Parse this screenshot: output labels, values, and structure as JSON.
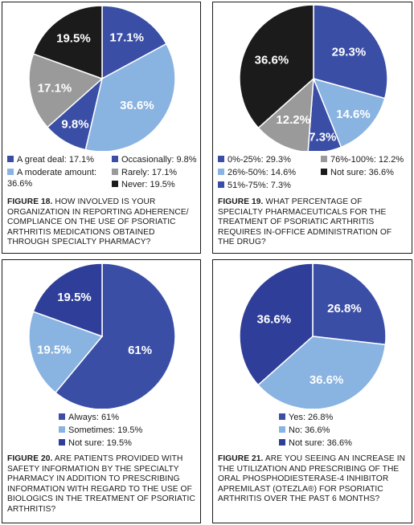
{
  "colors": {
    "dark_blue": "#3a4ea6",
    "light_blue": "#89b3e0",
    "gray": "#9a9a9a",
    "black": "#1b1b1b"
  },
  "chart_data": [
    {
      "type": "pie",
      "title": "",
      "figure_label": "FIGURE 18.",
      "caption": "HOW INVOLVED IS YOUR ORGANIZATION IN REPORTING ADHERENCE/ COMPLIANCE ON THE USE OF PSORIATIC ARTHRITIS MEDICATIONS OBTAINED THROUGH SPECIALTY PHARMACY?",
      "slices": [
        {
          "name": "A great deal",
          "value": 17.1,
          "label": "17.1%",
          "legend": "A great deal: 17.1%",
          "color": "#3a4ea6"
        },
        {
          "name": "A moderate amount",
          "value": 36.6,
          "label": "36.6%",
          "legend": "A moderate amount: 36.6%",
          "color": "#89b3e0"
        },
        {
          "name": "Occasionally",
          "value": 9.8,
          "label": "9.8%",
          "legend": "Occasionally: 9.8%",
          "color": "#3a4ea6"
        },
        {
          "name": "Rarely",
          "value": 17.1,
          "label": "17.1%",
          "legend": "Rarely: 17.1%",
          "color": "#9a9a9a"
        },
        {
          "name": "Never",
          "value": 19.5,
          "label": "19.5%",
          "legend": "Never: 19.5%",
          "color": "#1b1b1b"
        }
      ],
      "legend_order": [
        0,
        2,
        1,
        3,
        4
      ]
    },
    {
      "type": "pie",
      "title": "",
      "figure_label": "FIGURE 19.",
      "caption": "WHAT PERCENTAGE OF SPECIALTY PHARMACEUTICALS FOR THE TREATMENT OF PSORIATIC ARTHRITIS REQUIRES IN-OFFICE ADMINISTRATION OF THE DRUG?",
      "slices": [
        {
          "name": "0%-25%",
          "value": 29.3,
          "label": "29.3%",
          "legend": "0%-25%: 29.3%",
          "color": "#3a4ea6"
        },
        {
          "name": "26%-50%",
          "value": 14.6,
          "label": "14.6%",
          "legend": "26%-50%: 14.6%",
          "color": "#89b3e0"
        },
        {
          "name": "51%-75%",
          "value": 7.3,
          "label": "7.3%",
          "legend": "51%-75%: 7.3%",
          "color": "#3a4ea6"
        },
        {
          "name": "76%-100%",
          "value": 12.2,
          "label": "12.2%",
          "legend": "76%-100%: 12.2%",
          "color": "#9a9a9a"
        },
        {
          "name": "Not sure",
          "value": 36.6,
          "label": "36.6%",
          "legend": "Not sure: 36.6%",
          "color": "#1b1b1b"
        }
      ],
      "legend_order": [
        0,
        3,
        1,
        4,
        2
      ]
    },
    {
      "type": "pie",
      "title": "",
      "figure_label": "FIGURE 20.",
      "caption": "ARE PATIENTS PROVIDED WITH SAFETY INFORMATION BY THE SPECIALTY PHARMACY IN ADDITION TO PRESCRIBING INFORMATION WITH REGARD TO THE USE OF BIOLOGICS IN THE TREATMENT OF PSORIATIC ARTHRITIS?",
      "slices": [
        {
          "name": "Always",
          "value": 61,
          "label": "61%",
          "legend": "Always: 61%",
          "color": "#3a4ea6"
        },
        {
          "name": "Sometimes",
          "value": 19.5,
          "label": "19.5%",
          "legend": "Sometimes: 19.5%",
          "color": "#89b3e0"
        },
        {
          "name": "Not sure",
          "value": 19.5,
          "label": "19.5%",
          "legend": "Not sure: 19.5%",
          "color": "#2f3f99"
        }
      ],
      "legend_order": [
        0,
        1,
        2
      ]
    },
    {
      "type": "pie",
      "title": "",
      "figure_label": "FIGURE 21.",
      "caption": "ARE YOU SEEING AN INCREASE IN THE UTILIZATION AND PRESCRIBING OF THE ORAL PHOSPHODIESTERASE-4 INHIBITOR APREMILAST (OTEZLA®) FOR PSORIATIC ARTHRITIS OVER THE PAST 6 MONTHS?",
      "slices": [
        {
          "name": "Yes",
          "value": 26.8,
          "label": "26.8%",
          "legend": "Yes: 26.8%",
          "color": "#3a4ea6"
        },
        {
          "name": "No",
          "value": 36.6,
          "label": "36.6%",
          "legend": "No: 36.6%",
          "color": "#89b3e0"
        },
        {
          "name": "Not sure",
          "value": 36.6,
          "label": "36.6%",
          "legend": "Not sure: 36.6%",
          "color": "#2f3f99"
        }
      ],
      "legend_order": [
        0,
        1,
        2
      ]
    }
  ]
}
